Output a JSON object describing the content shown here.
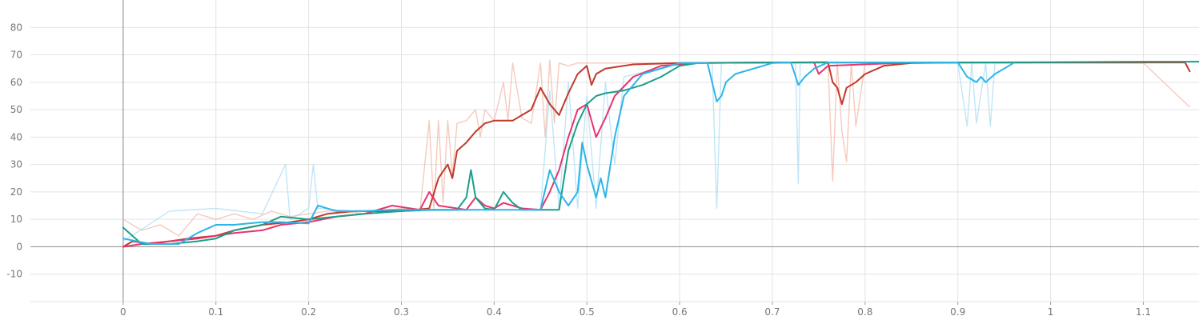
{
  "chart_data": {
    "type": "line",
    "title": "",
    "xlabel": "",
    "ylabel": "",
    "xlim": [
      -0.1,
      1.16
    ],
    "ylim": [
      -20,
      90
    ],
    "x_ticks": [
      "0",
      "0.1",
      "0.2",
      "0.3",
      "0.4",
      "0.5",
      "0.6",
      "0.7",
      "0.8",
      "0.9",
      "1",
      "1.1"
    ],
    "x_tick_values": [
      0,
      0.1,
      0.2,
      0.3,
      0.4,
      0.5,
      0.6,
      0.7,
      0.8,
      0.9,
      1,
      1.1
    ],
    "y_ticks": [
      "80",
      "70",
      "60",
      "50",
      "40",
      "30",
      "20",
      "10",
      "0",
      "-10"
    ],
    "y_tick_values": [
      80,
      70,
      60,
      50,
      40,
      30,
      20,
      10,
      0,
      -10
    ],
    "grid": true,
    "legend": "none",
    "series": [
      {
        "color": "#c0392b",
        "x": [
          0,
          0.01,
          0.03,
          0.05,
          0.07,
          0.1,
          0.12,
          0.15,
          0.18,
          0.2,
          0.22,
          0.25,
          0.28,
          0.3,
          0.33,
          0.34,
          0.35,
          0.355,
          0.36,
          0.37,
          0.38,
          0.39,
          0.4,
          0.42,
          0.43,
          0.44,
          0.45,
          0.46,
          0.47,
          0.48,
          0.49,
          0.5,
          0.505,
          0.51,
          0.52,
          0.55,
          0.6,
          0.7,
          0.76,
          0.765,
          0.77,
          0.775,
          0.78,
          0.79,
          0.8,
          0.82,
          0.85,
          0.9,
          1.0,
          1.1,
          1.145,
          1.15
        ],
        "y": [
          0,
          2,
          1,
          2,
          3,
          4,
          6,
          8,
          9,
          10,
          12,
          13,
          13,
          13,
          14,
          25,
          30,
          25,
          35,
          38,
          42,
          45,
          46,
          46,
          48,
          50,
          58,
          52,
          48,
          56,
          63,
          66,
          59,
          63,
          65,
          66.5,
          67,
          67.2,
          67.3,
          60,
          58,
          52,
          58,
          60,
          63,
          66,
          67,
          67.2,
          67.2,
          67.2,
          67.2,
          64
        ]
      },
      {
        "color": "#e8336d",
        "x": [
          0,
          0.02,
          0.05,
          0.08,
          0.1,
          0.12,
          0.15,
          0.17,
          0.2,
          0.23,
          0.26,
          0.29,
          0.32,
          0.33,
          0.34,
          0.36,
          0.37,
          0.38,
          0.39,
          0.4,
          0.41,
          0.43,
          0.45,
          0.46,
          0.47,
          0.48,
          0.49,
          0.5,
          0.51,
          0.52,
          0.53,
          0.55,
          0.58,
          0.62,
          0.7,
          0.745,
          0.75,
          0.76,
          0.85,
          0.95,
          0.98
        ],
        "y": [
          0,
          1,
          2,
          3,
          4,
          5,
          6,
          8,
          9,
          11,
          12,
          15,
          13.5,
          20,
          15,
          14,
          13.5,
          18,
          15,
          14,
          16,
          14,
          13.5,
          20,
          28,
          40,
          50,
          52,
          40,
          47,
          55,
          62,
          66,
          67,
          67.2,
          67.2,
          63,
          66,
          67.2,
          67.2,
          67.2
        ]
      },
      {
        "color": "#1a9e8a",
        "x": [
          0,
          0.02,
          0.05,
          0.08,
          0.1,
          0.12,
          0.15,
          0.17,
          0.2,
          0.23,
          0.26,
          0.3,
          0.33,
          0.36,
          0.37,
          0.375,
          0.38,
          0.39,
          0.4,
          0.41,
          0.42,
          0.43,
          0.45,
          0.47,
          0.48,
          0.49,
          0.5,
          0.51,
          0.52,
          0.54,
          0.56,
          0.58,
          0.6,
          0.62,
          0.7,
          0.8,
          0.9,
          1.0,
          1.1,
          1.16
        ],
        "y": [
          7,
          1,
          1,
          2,
          3,
          6,
          8,
          11,
          10,
          11,
          12,
          13,
          13.5,
          13.5,
          18,
          28,
          18,
          14,
          13.5,
          20,
          16,
          13.5,
          13.5,
          13.5,
          35,
          45,
          52,
          55,
          56,
          57,
          59,
          62,
          66,
          67,
          67.2,
          67.2,
          67.2,
          67.3,
          67.5,
          67.5
        ]
      },
      {
        "color": "#2cb5e8",
        "x": [
          0,
          0.03,
          0.06,
          0.08,
          0.1,
          0.12,
          0.15,
          0.17,
          0.2,
          0.21,
          0.23,
          0.26,
          0.29,
          0.32,
          0.36,
          0.4,
          0.45,
          0.46,
          0.47,
          0.48,
          0.49,
          0.495,
          0.5,
          0.51,
          0.515,
          0.52,
          0.53,
          0.54,
          0.56,
          0.6,
          0.63,
          0.64,
          0.645,
          0.65,
          0.66,
          0.7,
          0.72,
          0.728,
          0.735,
          0.745,
          0.76,
          0.8,
          0.9,
          0.91,
          0.92,
          0.925,
          0.93,
          0.94,
          0.96
        ],
        "y": [
          3,
          1,
          1,
          5,
          8,
          8,
          9,
          9,
          8.5,
          15,
          13,
          13,
          13.5,
          13.5,
          13.5,
          13.5,
          13.5,
          28,
          20,
          15,
          20,
          38,
          30,
          18,
          25,
          18,
          40,
          55,
          63,
          67,
          67,
          53,
          55,
          60,
          63,
          67,
          67.2,
          59,
          62,
          65,
          67.2,
          67.2,
          67.2,
          62,
          60,
          62,
          60,
          63,
          67
        ]
      }
    ],
    "noisy_series": [
      {
        "color": "#f2b8a8",
        "x": [
          0,
          0.02,
          0.04,
          0.06,
          0.08,
          0.1,
          0.12,
          0.14,
          0.16,
          0.18,
          0.2,
          0.22,
          0.24,
          0.26,
          0.28,
          0.3,
          0.32,
          0.33,
          0.335,
          0.34,
          0.345,
          0.35,
          0.355,
          0.36,
          0.37,
          0.38,
          0.385,
          0.39,
          0.4,
          0.41,
          0.415,
          0.42,
          0.43,
          0.44,
          0.45,
          0.455,
          0.46,
          0.465,
          0.47,
          0.48,
          0.49,
          0.5,
          0.55,
          0.6,
          0.7,
          0.76,
          0.765,
          0.77,
          0.775,
          0.78,
          0.785,
          0.79,
          0.8,
          0.9,
          1.0,
          1.1,
          1.15
        ],
        "y": [
          10,
          6,
          8,
          4,
          12,
          10,
          12,
          10,
          13,
          11,
          12,
          13,
          13,
          12,
          13,
          14,
          13,
          46,
          14,
          46,
          16,
          46,
          26,
          45,
          46,
          50,
          40,
          50,
          46,
          60,
          46,
          67,
          47,
          45,
          67,
          40,
          68,
          45,
          67,
          66,
          67,
          67,
          67,
          67,
          67,
          67,
          24,
          67,
          42,
          31,
          67,
          44,
          67,
          67,
          67,
          67,
          51
        ]
      },
      {
        "color": "#a9def4",
        "x": [
          0,
          0.05,
          0.1,
          0.15,
          0.175,
          0.18,
          0.2,
          0.205,
          0.21,
          0.25,
          0.3,
          0.4,
          0.45,
          0.46,
          0.47,
          0.48,
          0.49,
          0.5,
          0.51,
          0.52,
          0.53,
          0.54,
          0.6,
          0.635,
          0.64,
          0.645,
          0.7,
          0.725,
          0.728,
          0.73,
          0.8,
          0.9,
          0.91,
          0.915,
          0.92,
          0.93,
          0.935,
          0.94,
          1.0
        ],
        "y": [
          2,
          13,
          14,
          12,
          30,
          10,
          14,
          30,
          14,
          13,
          13,
          13.5,
          13.5,
          57,
          14,
          60,
          14,
          55,
          14,
          60,
          30,
          62,
          67,
          67,
          14,
          67,
          67,
          67,
          23,
          67,
          67,
          67,
          44,
          67,
          45,
          67,
          44,
          67,
          67
        ]
      }
    ]
  }
}
